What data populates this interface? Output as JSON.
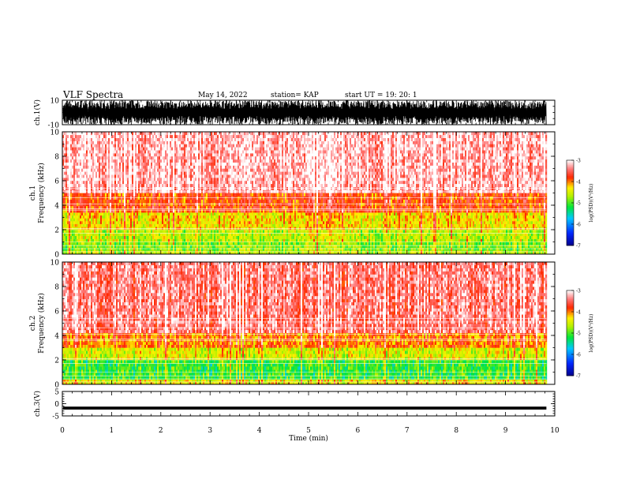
{
  "header": {
    "title": "VLF Spectra",
    "date": "May 14, 2022",
    "station": "station= KAP",
    "start": "start  UT =    19: 20: 1"
  },
  "colors": {
    "background": "#ffffff",
    "axis": "#000000",
    "spectrogram_low": "#0000a0",
    "spectrogram_high": "#ffffff"
  },
  "chart_data": [
    {
      "type": "line",
      "panel": "ch1-waveform",
      "ylabel": "ch.1(V)",
      "ylim": [
        -10,
        10
      ],
      "yticks": [
        10,
        -10
      ],
      "xlim": [
        0,
        10
      ],
      "grid": false,
      "description_values": {
        "amplitude_min": -10,
        "amplitude_max": 10,
        "data_end_min": 9.83
      }
    },
    {
      "type": "heatmap",
      "panel": "ch1-spectrogram",
      "ylabel": "ch.1 Frequency (kHz)",
      "ylim": [
        0,
        10
      ],
      "yticks": [
        0,
        2,
        4,
        6,
        8,
        10
      ],
      "xlim": [
        0,
        10
      ],
      "data_end_min": 9.83,
      "colorbar": {
        "label": "log(PSD)(V²/Hz)",
        "range": [
          -7,
          -3
        ],
        "ticks": [
          -3,
          -4,
          -5,
          -6,
          -7
        ]
      },
      "bands_khz": [
        {
          "from": 0.0,
          "to": 0.3,
          "level": -4.6
        },
        {
          "from": 0.3,
          "to": 1.0,
          "level": -4.8
        },
        {
          "from": 1.0,
          "to": 2.0,
          "level": -4.6
        },
        {
          "from": 2.0,
          "to": 3.4,
          "level": -4.3
        },
        {
          "from": 3.4,
          "to": 5.0,
          "level": -3.8
        },
        {
          "from": 5.0,
          "to": 10.0,
          "level": -3.2
        }
      ]
    },
    {
      "type": "heatmap",
      "panel": "ch2-spectrogram",
      "ylabel": "ch.2 Frequency (kHz)",
      "ylim": [
        0,
        10
      ],
      "yticks": [
        0,
        2,
        4,
        6,
        8,
        10
      ],
      "xlim": [
        0,
        10
      ],
      "data_end_min": 9.83,
      "colorbar": {
        "label": "log(PSD)(V²/Hz)",
        "range": [
          -7,
          -3
        ],
        "ticks": [
          -3,
          -4,
          -5,
          -6,
          -7
        ]
      },
      "bands_khz": [
        {
          "from": 0.0,
          "to": 0.4,
          "level": -4.4
        },
        {
          "from": 0.4,
          "to": 2.0,
          "level": -5.1
        },
        {
          "from": 2.0,
          "to": 3.0,
          "level": -4.5
        },
        {
          "from": 3.0,
          "to": 4.2,
          "level": -4.0
        },
        {
          "from": 4.2,
          "to": 10.0,
          "level": -3.4
        }
      ]
    },
    {
      "type": "line",
      "panel": "ch3-waveform",
      "ylabel": "ch.3(V)",
      "ylim": [
        -5,
        5
      ],
      "yticks": [
        5,
        0,
        -5
      ],
      "xlim": [
        0,
        10
      ],
      "xticks": [
        0,
        1,
        2,
        3,
        4,
        5,
        6,
        7,
        8,
        9,
        10
      ],
      "xlabel": "Time (min)",
      "description_values": {
        "amplitude_min": -2.4,
        "amplitude_max": -1.2,
        "data_end_min": 9.83
      }
    }
  ]
}
